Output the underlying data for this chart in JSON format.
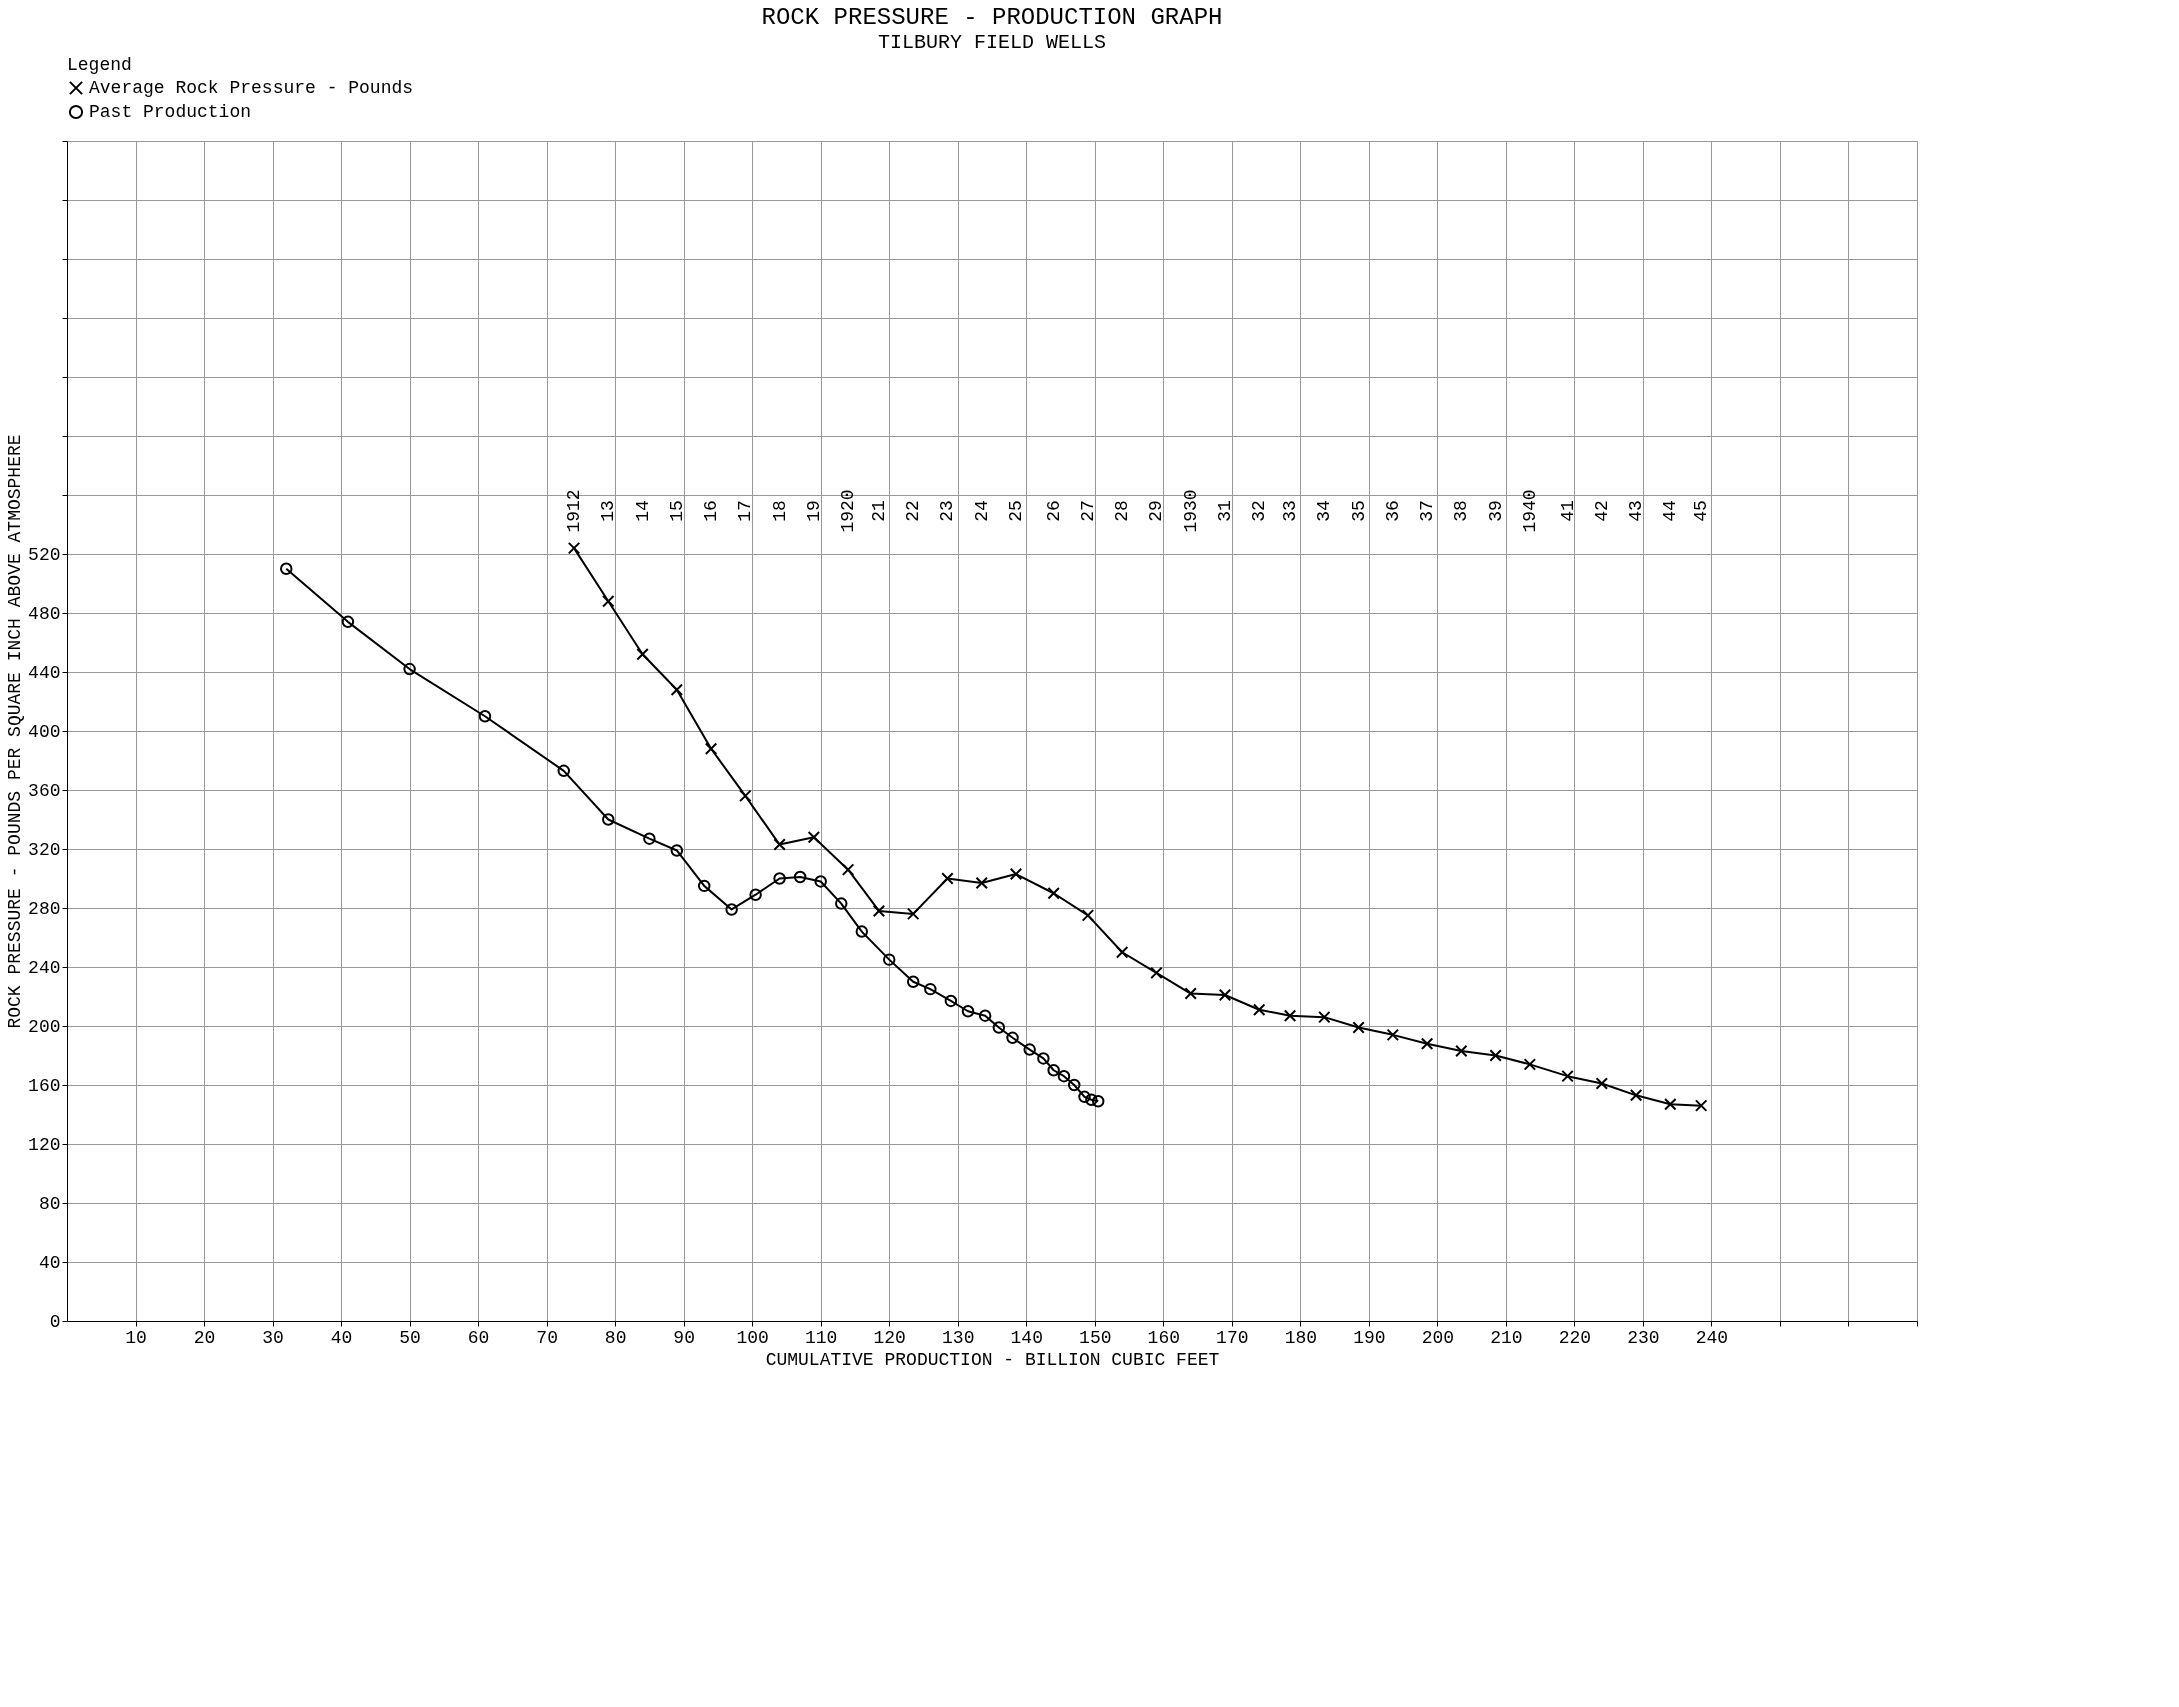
{
  "chart_data": {
    "type": "line",
    "title": "ROCK PRESSURE - PRODUCTION GRAPH",
    "subtitle": "TILBURY FIELD WELLS",
    "xlabel": "CUMULATIVE PRODUCTION - BILLION CUBIC FEET",
    "ylabel": "ROCK PRESSURE - POUNDS PER SQUARE INCH ABOVE ATMOSPHERE",
    "legend_title": "Legend",
    "legend": "top",
    "grid": true,
    "line_style": "solid",
    "xlim": [
      0,
      270
    ],
    "ylim": [
      0,
      800
    ],
    "xticks": [
      10,
      20,
      30,
      40,
      50,
      60,
      70,
      80,
      90,
      100,
      110,
      120,
      130,
      140,
      150,
      160,
      170,
      180,
      190,
      200,
      210,
      220,
      230,
      240,
      {
        "value": 250,
        "label": null
      },
      {
        "value": 260,
        "label": null
      },
      {
        "value": 270,
        "label": null
      }
    ],
    "yticks": [
      0,
      40,
      80,
      120,
      160,
      200,
      240,
      280,
      320,
      360,
      400,
      440,
      480,
      520,
      {
        "value": 560,
        "label": null
      },
      {
        "value": 600,
        "label": null
      },
      {
        "value": 640,
        "label": null
      },
      {
        "value": 680,
        "label": null
      },
      {
        "value": 720,
        "label": null
      },
      {
        "value": 760,
        "label": null
      },
      {
        "value": 800,
        "label": null
      }
    ],
    "annotations": [
      "1912",
      "13",
      "14",
      "15",
      "16",
      "17",
      "18",
      "19",
      "1920",
      "21",
      "22",
      "23",
      "24",
      "25",
      "26",
      "27",
      "28",
      "29",
      "1930",
      "31",
      "32",
      "33",
      "34",
      "35",
      "36",
      "37",
      "38",
      "39",
      "1940",
      "41",
      "42",
      "43",
      "44",
      "45"
    ],
    "series": [
      {
        "name": "Average Rock Pressure - Pounds",
        "color": "#000000",
        "marker": "cross",
        "x": [
          74,
          79,
          84,
          89,
          94,
          99,
          104,
          109,
          114,
          118.5,
          123.5,
          128.5,
          133.5,
          138.5,
          144,
          149,
          154,
          159,
          164,
          169,
          174,
          178.5,
          183.5,
          188.5,
          193.5,
          198.5,
          203.5,
          208.5,
          213.5,
          219,
          224,
          229,
          234,
          238.5
        ],
        "values": [
          524,
          488,
          452,
          428,
          388,
          356,
          323,
          328,
          306,
          278,
          276,
          300,
          297,
          303,
          290,
          275,
          250,
          236,
          222,
          221,
          211,
          207,
          206,
          199,
          194,
          188,
          183,
          180,
          174,
          166,
          161,
          153,
          147,
          146
        ]
      },
      {
        "name": "Past Production",
        "color": "#000000",
        "marker": "circle",
        "x": [
          32,
          41,
          50,
          61,
          72.5,
          79,
          85,
          89,
          93,
          97,
          100.5,
          104,
          107,
          110,
          113,
          116,
          120,
          123.5,
          126,
          129,
          131.5,
          134,
          136,
          138,
          140.5,
          142.5,
          144,
          145.5,
          147,
          148.5,
          149.5,
          150.5
        ],
        "values": [
          510,
          474,
          442,
          410,
          373,
          340,
          327,
          319,
          295,
          279,
          289,
          300,
          301,
          298,
          283,
          264,
          245,
          230,
          225,
          217,
          210,
          207,
          199,
          192,
          184,
          178,
          170,
          166,
          160,
          152,
          150,
          149
        ]
      }
    ]
  }
}
